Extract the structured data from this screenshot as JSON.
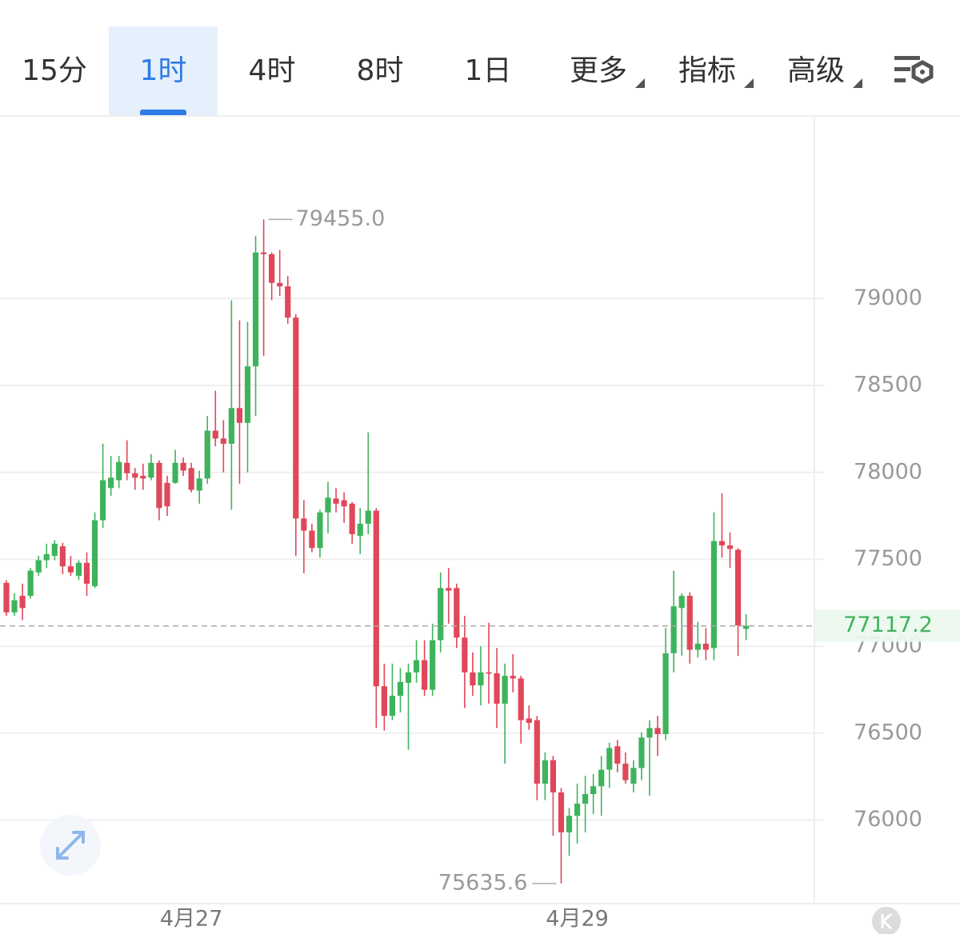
{
  "tabs": {
    "items": [
      "15分",
      "1时",
      "4时",
      "8时",
      "1日",
      "更多",
      "指标",
      "高级"
    ],
    "selected": 1
  },
  "chart_data": {
    "type": "candlestick",
    "categories": [
      null,
      null,
      null,
      null,
      null,
      null,
      null,
      null,
      null,
      null,
      null,
      null,
      null,
      null,
      null,
      null,
      null,
      null,
      null,
      null,
      null,
      null,
      null,
      "4月27",
      null,
      null,
      null,
      null,
      null,
      null,
      null,
      null,
      null,
      null,
      null,
      null,
      null,
      null,
      null,
      null,
      null,
      null,
      null,
      null,
      null,
      null,
      null,
      null,
      null,
      null,
      null,
      null,
      null,
      null,
      null,
      null,
      null,
      null,
      null,
      null,
      null,
      null,
      null,
      null,
      null,
      null,
      null,
      null,
      null,
      null,
      null,
      "4月29",
      null,
      null,
      null,
      null,
      null,
      null,
      null,
      null,
      null,
      null,
      null,
      null,
      null,
      null,
      null,
      null,
      null,
      null,
      null,
      null,
      null
    ],
    "open": [
      77365,
      77195,
      77290,
      77290,
      77425,
      77495,
      77520,
      77575,
      77460,
      77405,
      77480,
      77345,
      77725,
      77910,
      77955,
      78055,
      77995,
      77980,
      77970,
      78055,
      77940,
      77940,
      78055,
      78025,
      77895,
      77965,
      78240,
      78195,
      78165,
      78370,
      78285,
      78610,
      79265,
      79255,
      79090,
      79070,
      78890,
      77735,
      77665,
      77565,
      77770,
      77850,
      77840,
      77820,
      77635,
      77705,
      77780,
      76770,
      76600,
      76715,
      76790,
      76850,
      76920,
      76750,
      77035,
      77335,
      77335,
      77050,
      76850,
      76775,
      76850,
      76845,
      76670,
      76830,
      76815,
      76585,
      76575,
      76210,
      76345,
      76160,
      75930,
      76025,
      76095,
      76150,
      76195,
      76290,
      76425,
      76325,
      76210,
      76300,
      76475,
      76530,
      76495,
      76960,
      77220,
      77290,
      76980,
      77015,
      76990,
      77605,
      77580,
      77555,
      77100
    ],
    "high": [
      77380,
      77305,
      77360,
      77450,
      77520,
      77590,
      77610,
      77595,
      77520,
      77495,
      77540,
      77770,
      78165,
      78095,
      78095,
      78185,
      78025,
      78050,
      78105,
      78070,
      77980,
      78130,
      78085,
      78055,
      78010,
      78325,
      78470,
      78300,
      78990,
      78875,
      78865,
      79360,
      79455,
      79265,
      79280,
      79130,
      78910,
      77840,
      77705,
      77785,
      77945,
      77910,
      77885,
      77830,
      77795,
      78230,
      77795,
      76900,
      76900,
      76875,
      76900,
      77035,
      77035,
      77130,
      77425,
      77450,
      77360,
      77175,
      76965,
      77000,
      77135,
      76990,
      76900,
      76955,
      76830,
      76660,
      76600,
      76390,
      76370,
      76185,
      76070,
      76210,
      76255,
      76265,
      76370,
      76445,
      76460,
      76390,
      76345,
      76505,
      76575,
      76600,
      77105,
      77435,
      77305,
      77310,
      77140,
      77105,
      77770,
      77880,
      77655,
      77565,
      77185
    ],
    "low": [
      77175,
      77175,
      77150,
      77275,
      77405,
      77450,
      77495,
      77415,
      77405,
      77380,
      77290,
      77335,
      77680,
      77865,
      77910,
      77955,
      77900,
      77900,
      77955,
      77725,
      77750,
      77935,
      77980,
      77885,
      77820,
      77935,
      78150,
      78000,
      77785,
      77935,
      78000,
      78325,
      78670,
      78990,
      79015,
      78855,
      77520,
      77420,
      77540,
      77510,
      77650,
      77770,
      77710,
      77590,
      77530,
      77645,
      76530,
      76515,
      76575,
      76620,
      76405,
      76790,
      76715,
      76715,
      76965,
      77130,
      76990,
      76645,
      76715,
      76660,
      76670,
      76530,
      76325,
      76735,
      76440,
      76520,
      76115,
      76115,
      75910,
      75635.6,
      75795,
      75865,
      75930,
      76035,
      76025,
      76185,
      76275,
      76210,
      76160,
      76230,
      76140,
      76370,
      76460,
      76850,
      76945,
      76900,
      76935,
      76920,
      76920,
      77510,
      77450,
      76945,
      77035
    ],
    "close": [
      77195,
      77265,
      77220,
      77435,
      77495,
      77530,
      77590,
      77460,
      77425,
      77480,
      77360,
      77725,
      77955,
      77970,
      78060,
      77995,
      77970,
      77965,
      78055,
      77795,
      77805,
      78055,
      78010,
      77900,
      77965,
      78240,
      78195,
      78165,
      78370,
      78285,
      78610,
      79265,
      79255,
      79090,
      79070,
      78890,
      77735,
      77665,
      77565,
      77770,
      77855,
      77820,
      77805,
      77645,
      77705,
      77780,
      76770,
      76600,
      76715,
      76795,
      76850,
      76920,
      76750,
      77035,
      77335,
      77320,
      77050,
      76850,
      76775,
      76850,
      76845,
      76670,
      76830,
      76815,
      76575,
      76560,
      76210,
      76345,
      76160,
      75930,
      76025,
      76095,
      76150,
      76195,
      76290,
      76415,
      76325,
      76230,
      76300,
      76475,
      76530,
      76495,
      76960,
      77230,
      77290,
      76980,
      77015,
      76980,
      77605,
      77580,
      77560,
      77120,
      77117.2
    ],
    "up_color": "#3fb35c",
    "down_color": "#e0475a",
    "ylim": [
      75520,
      80050
    ],
    "yticks": [
      76000,
      76500,
      77000,
      77500,
      78000,
      78500,
      79000
    ],
    "grid": true,
    "annotations": [
      {
        "value": 79455,
        "label": "79455.0"
      },
      {
        "value": 75635.6,
        "label": "75635.6"
      }
    ],
    "last_price": 77117.2
  }
}
